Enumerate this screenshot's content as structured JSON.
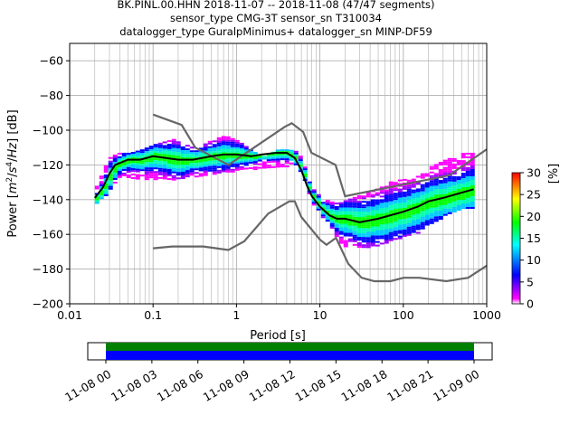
{
  "title_lines": [
    "BK.PINL.00.HHN   2018-11-07 -- 2018-11-08  (47/47 segments)",
    "sensor_type CMG-3T sensor_sn T310034",
    "datalogger_type GuralpMinimus+ datalogger_sn MINP-DF59"
  ],
  "chart_data": [
    {
      "type": "heatmap",
      "title": "BK.PINL.00.HHN   2018-11-07 -- 2018-11-08  (47/47 segments)",
      "xlabel": "Period [s]",
      "ylabel": "Power [m²/s⁴/Hz] [dB]",
      "xscale": "log",
      "xlim": [
        0.01,
        1000
      ],
      "ylim": [
        -200,
        -50
      ],
      "x_ticks": [
        {
          "value": 0.01,
          "label": "0.01"
        },
        {
          "value": 0.1,
          "label": "0.1"
        },
        {
          "value": 1,
          "label": "1"
        },
        {
          "value": 10,
          "label": "10"
        },
        {
          "value": 100,
          "label": "100"
        },
        {
          "value": 1000,
          "label": "1000"
        }
      ],
      "y_ticks": [
        {
          "value": -60,
          "label": "−60"
        },
        {
          "value": -80,
          "label": "−80"
        },
        {
          "value": -100,
          "label": "−100"
        },
        {
          "value": -120,
          "label": "−120"
        },
        {
          "value": -140,
          "label": "−140"
        },
        {
          "value": -160,
          "label": "−160"
        },
        {
          "value": -180,
          "label": "−180"
        },
        {
          "value": -200,
          "label": "−200"
        }
      ],
      "grid": true,
      "colorbar": {
        "label": "[%]",
        "range": [
          0,
          30
        ],
        "ticks": [
          {
            "value": 0,
            "label": "0"
          },
          {
            "value": 5,
            "label": "5"
          },
          {
            "value": 10,
            "label": "10"
          },
          {
            "value": 15,
            "label": "15"
          },
          {
            "value": 20,
            "label": "20"
          },
          {
            "value": 25,
            "label": "25"
          },
          {
            "value": 30,
            "label": "30"
          }
        ],
        "colors": [
          "#ffffff",
          "#ff00ff",
          "#0000ff",
          "#00ffff",
          "#00ff00",
          "#ffff00",
          "#ff0000"
        ]
      },
      "noise_models": [
        {
          "name": "NHNM",
          "color": "#666666",
          "x": [
            0.1,
            0.22,
            0.32,
            0.8,
            3.8,
            4.6,
            6.3,
            7.9,
            15.4,
            20,
            354.8,
            1000
          ],
          "y": [
            -91,
            -97,
            -110,
            -120,
            -98,
            -96,
            -101,
            -113,
            -120,
            -138,
            -126,
            -111
          ]
        },
        {
          "name": "NLNM",
          "color": "#666666",
          "x": [
            0.1,
            0.17,
            0.4,
            0.8,
            1.24,
            2.4,
            4.3,
            5,
            6,
            10,
            12,
            15.6,
            21.9,
            31.6,
            45,
            70,
            101,
            154,
            328,
            600,
            1000
          ],
          "y": [
            -168,
            -167,
            -167,
            -169,
            -164,
            -148,
            -141,
            -141,
            -150,
            -163,
            -166,
            -162,
            -177,
            -185,
            -187,
            -187,
            -185,
            -185,
            -187,
            -185,
            -178
          ]
        }
      ],
      "mean_curve": {
        "color": "#000000",
        "x": [
          0.02,
          0.025,
          0.03,
          0.035,
          0.05,
          0.07,
          0.1,
          0.2,
          0.3,
          0.5,
          0.7,
          1.0,
          1.5,
          2,
          3,
          4,
          5,
          6,
          7,
          8,
          10,
          13,
          16,
          20,
          30,
          50,
          70,
          100,
          150,
          200,
          300,
          500,
          700
        ],
        "y": [
          -139,
          -133,
          -125,
          -120,
          -117,
          -117,
          -115,
          -117,
          -117,
          -115,
          -114,
          -114,
          -115,
          -114,
          -113,
          -113,
          -116,
          -123,
          -132,
          -138,
          -144,
          -149,
          -151,
          -151,
          -153,
          -151,
          -149,
          -147,
          -144,
          -141,
          -139,
          -136,
          -134
        ]
      },
      "pdf_band": {
        "x": [
          0.02,
          0.03,
          0.035,
          0.05,
          0.07,
          0.1,
          0.2,
          0.3,
          0.5,
          0.7,
          1.0,
          1.5,
          2,
          3,
          4,
          5,
          6,
          7,
          8,
          10,
          13,
          16,
          20,
          30,
          50,
          70,
          100,
          150,
          200,
          300,
          500,
          700
        ],
        "upper": [
          -132,
          -113,
          -113,
          -113,
          -111,
          -108,
          -104,
          -111,
          -105,
          -103,
          -106,
          -112,
          -115,
          -111,
          -111,
          -112,
          -117,
          -128,
          -134,
          -139,
          -141,
          -142,
          -140,
          -137,
          -133,
          -129,
          -128,
          -126,
          -121,
          -117,
          -113,
          -113
        ],
        "lower": [
          -142,
          -134,
          -127,
          -127,
          -128,
          -128,
          -128,
          -127,
          -125,
          -124,
          -123,
          -122,
          -122,
          -121,
          -121,
          -121,
          -126,
          -136,
          -143,
          -150,
          -156,
          -164,
          -167,
          -168,
          -166,
          -163,
          -161,
          -159,
          -154,
          -149,
          -145,
          -145
        ]
      }
    },
    {
      "type": "timeline",
      "xlim": [
        "11-08 00",
        "11-09 00"
      ],
      "tick_labels": [
        "11-08 00",
        "11-08 03",
        "11-08 06",
        "11-08 09",
        "11-08 12",
        "11-08 15",
        "11-08 18",
        "11-08 21",
        "11-09 00"
      ],
      "coverage": [
        {
          "name": "data",
          "color": "#008000",
          "start": "11-08 00",
          "end": "11-09 00"
        },
        {
          "name": "processed",
          "color": "#0000ff",
          "start": "11-08 00",
          "end": "11-09 00"
        }
      ]
    }
  ]
}
